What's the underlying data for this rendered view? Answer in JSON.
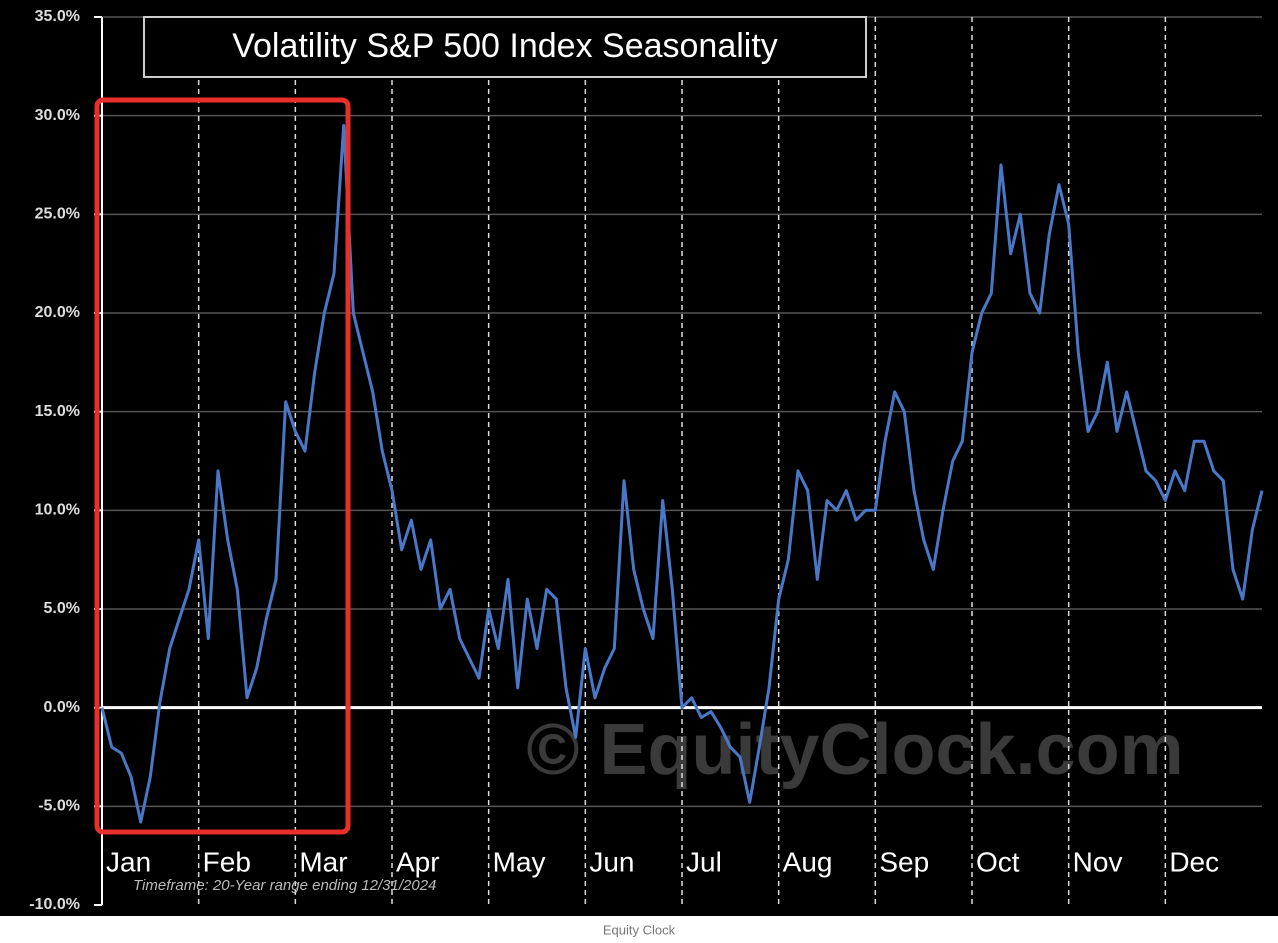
{
  "chart_data": {
    "type": "line",
    "title": "Volatility S&P 500 Index Seasonality",
    "note": "Timeframe:  20-Year range ending 12/31/2024",
    "watermark": "© EquityClock.com",
    "source": "Equity Clock",
    "months": [
      "Jan",
      "Feb",
      "Mar",
      "Apr",
      "May",
      "Jun",
      "Jul",
      "Aug",
      "Sep",
      "Oct",
      "Nov",
      "Dec"
    ],
    "color": "#4a78c8",
    "ylim": [
      -10,
      35
    ],
    "yticks": [
      {
        "value": -10,
        "label": "-10.0%"
      },
      {
        "value": -5,
        "label": "-5.0%"
      },
      {
        "value": 0,
        "label": "0.0%"
      },
      {
        "value": 5,
        "label": "5.0%"
      },
      {
        "value": 10,
        "label": "10.0%"
      },
      {
        "value": 15,
        "label": "15.0%"
      },
      {
        "value": 20,
        "label": "20.0%"
      },
      {
        "value": 25,
        "label": "25.0%"
      },
      {
        "value": 30,
        "label": "30.0%"
      },
      {
        "value": 35,
        "label": "35.0%"
      }
    ],
    "grid": true,
    "values": [
      0,
      -2,
      -2.3,
      -3.5,
      -5.8,
      -3.5,
      0.3,
      3,
      4.5,
      6,
      8.5,
      3.5,
      12,
      8.5,
      6,
      0.5,
      2,
      4.5,
      6.5,
      15.5,
      14,
      13,
      17,
      20,
      22,
      29.5,
      20,
      18,
      16,
      13,
      11,
      8,
      9.5,
      7,
      8.5,
      5,
      6,
      3.5,
      2.5,
      1.5,
      5,
      3,
      6.5,
      1,
      5.5,
      3,
      6,
      5.5,
      1,
      -1.5,
      3,
      0.5,
      2,
      3,
      11.5,
      7,
      5,
      3.5,
      10.5,
      6,
      0,
      0.5,
      -0.5,
      -0.2,
      -1,
      -2,
      -2.5,
      -4.8,
      -2,
      1,
      5.5,
      7.5,
      12,
      11,
      6.5,
      10.5,
      10,
      11,
      9.5,
      10,
      10,
      13.5,
      16,
      15,
      11,
      8.5,
      7,
      10,
      12.5,
      13.5,
      18,
      20,
      21,
      27.5,
      23,
      25,
      21,
      20,
      24,
      26.5,
      24.5,
      18,
      14,
      15,
      17.5,
      14,
      16,
      14,
      12,
      11.5,
      10.5,
      12,
      11,
      13.5,
      13.5,
      12,
      11.5,
      7,
      5.5,
      9,
      11
    ]
  }
}
